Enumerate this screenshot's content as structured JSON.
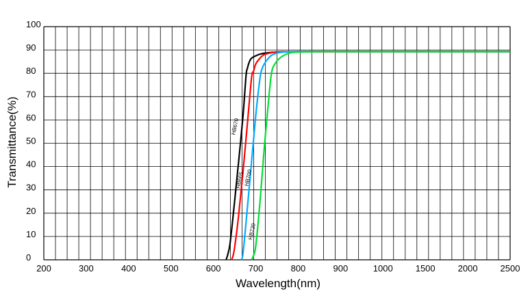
{
  "chart_data": {
    "type": "line",
    "title": "",
    "xlabel": "Wavelength(nm)",
    "ylabel": "Transmittance(%)",
    "x_tick_labels": [
      "200",
      "300",
      "400",
      "500",
      "600",
      "700",
      "800",
      "900",
      "1000",
      "1500",
      "2000",
      "2500"
    ],
    "y_tick_labels": [
      "0",
      "10",
      "20",
      "30",
      "40",
      "50",
      "60",
      "70",
      "80",
      "90",
      "100"
    ],
    "x_scale": "piecewise: 200-1000 linear in 100 nm steps, 1000-2500 in 500 nm steps (equal tick spacing)",
    "ylim": [
      0,
      100
    ],
    "grid": true,
    "legend": "none (curves labeled inline)",
    "series": [
      {
        "name": "HB670",
        "color": "#000000",
        "label_at": [
          655,
          57
        ],
        "x": [
          630,
          635,
          640,
          650,
          660,
          670,
          677,
          680,
          685,
          690,
          700,
          710,
          720,
          740,
          760,
          800,
          900,
          1000,
          1500,
          2000,
          2500
        ],
        "y": [
          0,
          3,
          8,
          25,
          43,
          62,
          79,
          82,
          85,
          86.5,
          87.5,
          88.2,
          88.6,
          89,
          89.2,
          89.3,
          89.3,
          89.3,
          89.3,
          89.3,
          89.3
        ]
      },
      {
        "name": "HB665",
        "color": "#ff0000",
        "label_at": [
          666,
          34
        ],
        "x": [
          643,
          648,
          655,
          660,
          670,
          680,
          690,
          695,
          700,
          710,
          720,
          740,
          760,
          800,
          900,
          1000,
          1500,
          2000,
          2500
        ],
        "y": [
          0,
          3,
          12,
          20,
          38,
          58,
          78,
          81,
          84,
          86.5,
          88,
          88.9,
          89.2,
          89.3,
          89.3,
          89.3,
          89.3,
          89.3,
          89.3
        ]
      },
      {
        "name": "HB700",
        "color": "#00aaff",
        "label_at": [
          686,
          35
        ],
        "x": [
          665,
          670,
          680,
          690,
          700,
          710,
          715,
          720,
          730,
          740,
          760,
          800,
          900,
          1000,
          1500,
          2000,
          2500
        ],
        "y": [
          0,
          3,
          22,
          42,
          62,
          78,
          82,
          84,
          86.5,
          88,
          89,
          89.3,
          89.3,
          89.3,
          89.3,
          89.3,
          89.3
        ]
      },
      {
        "name": "HB720",
        "color": "#00dd33",
        "label_at": [
          695,
          12
        ],
        "x": [
          690,
          695,
          700,
          710,
          720,
          730,
          737,
          745,
          760,
          780,
          800,
          850,
          900,
          1000,
          1500,
          2000,
          2500
        ],
        "y": [
          0,
          2,
          6,
          25,
          48,
          68,
          80,
          84,
          87,
          88.7,
          89.1,
          89.3,
          89.3,
          89.3,
          89.3,
          89.3,
          89.3
        ]
      }
    ]
  }
}
